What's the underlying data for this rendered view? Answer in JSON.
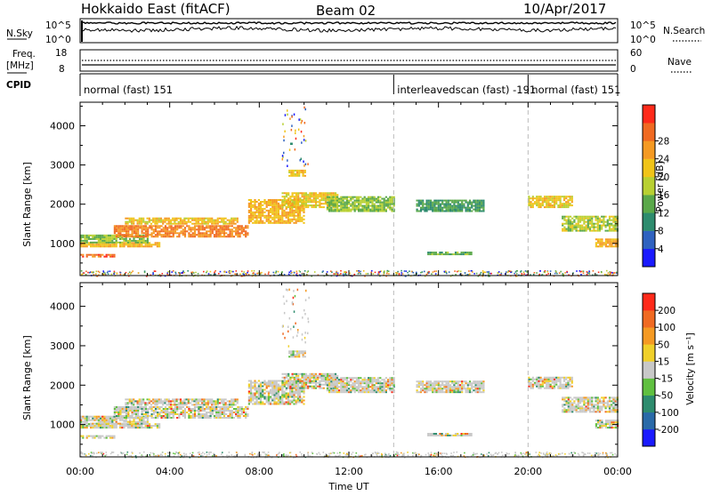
{
  "header": {
    "title": "Hokkaido East (fitACF)",
    "beam": "Beam 02",
    "date": "10/Apr/2017"
  },
  "top_panels": {
    "nsky_label": "N.Sky",
    "nsky_ticks": [
      "10^5",
      "10^0"
    ],
    "nsearch_label": "N.Search",
    "nsearch_ticks": [
      "10^5",
      "10^0"
    ],
    "freq_label_1": "Freq.",
    "freq_label_2": "[MHz]",
    "freq_ticks": [
      "18",
      "8"
    ],
    "nave_label": "Nave",
    "nave_ticks": [
      "60",
      "0"
    ],
    "cpid_label": "CPID",
    "cpid_segments": [
      {
        "label": "normal (fast) 151",
        "start_h": 0
      },
      {
        "label": "interleavedscan (fast) -191",
        "start_h": 14
      },
      {
        "label": "normal (fast) 151",
        "start_h": 20
      }
    ]
  },
  "axes": {
    "ylabel": "Slant Range [km]",
    "xlabel": "Time UT",
    "x_ticks": [
      "00:00",
      "04:00",
      "08:00",
      "12:00",
      "16:00",
      "20:00",
      "00:00"
    ],
    "y_ticks": [
      "1000",
      "2000",
      "3000",
      "4000"
    ]
  },
  "colorbars": {
    "power": {
      "label": "Power [dB]",
      "ticks": [
        "4",
        "8",
        "12",
        "16",
        "20",
        "24",
        "28"
      ],
      "colors": [
        "#1a1aff",
        "#2f62c0",
        "#2e8c6e",
        "#5aa84a",
        "#b8d032",
        "#f0c419",
        "#f59a23",
        "#f06a22",
        "#ff2a1a"
      ]
    },
    "velocity": {
      "label": "Velocity [m s⁻¹]",
      "ticks": [
        "200",
        "100",
        "50",
        "15",
        "-15",
        "-50",
        "-100",
        "-200"
      ],
      "colors": [
        "#1a1aff",
        "#2a6aa8",
        "#2e8c6e",
        "#60c040",
        "#c8c8c8",
        "#f0d02a",
        "#f59a23",
        "#f06a22",
        "#ff2a1a"
      ]
    }
  },
  "chart_data": {
    "type": "heatmap",
    "title": "Hokkaido East (fitACF)",
    "x_range_hours": [
      0,
      24
    ],
    "y_range_km": [
      180,
      4600
    ],
    "backscatter_bands_power": [
      {
        "t0": 0.0,
        "t1": 3.5,
        "r0": 900,
        "r1": 1000,
        "db": 22
      },
      {
        "t0": 0.0,
        "t1": 1.5,
        "r0": 640,
        "r1": 720,
        "db": 28
      },
      {
        "t0": 0.0,
        "t1": 3.0,
        "r0": 1000,
        "r1": 1200,
        "db": 14
      },
      {
        "t0": 1.5,
        "t1": 7.5,
        "r0": 1150,
        "r1": 1450,
        "db": 26
      },
      {
        "t0": 2.0,
        "t1": 7.0,
        "r0": 1480,
        "r1": 1620,
        "db": 20
      },
      {
        "t0": 7.5,
        "t1": 10.0,
        "r0": 1500,
        "r1": 2100,
        "db": 22
      },
      {
        "t0": 9.0,
        "t1": 11.5,
        "r0": 1900,
        "r1": 2300,
        "db": 20
      },
      {
        "t0": 9.3,
        "t1": 10.0,
        "r0": 2700,
        "r1": 2850,
        "db": 20
      },
      {
        "t0": 11.0,
        "t1": 14.0,
        "r0": 1800,
        "r1": 2200,
        "db": 14
      },
      {
        "t0": 15.0,
        "t1": 18.0,
        "r0": 1800,
        "r1": 2100,
        "db": 10
      },
      {
        "t0": 15.5,
        "t1": 17.5,
        "r0": 700,
        "r1": 780,
        "db": 12
      },
      {
        "t0": 20.0,
        "t1": 22.0,
        "r0": 1900,
        "r1": 2200,
        "db": 20
      },
      {
        "t0": 21.5,
        "t1": 24.0,
        "r0": 1300,
        "r1": 1700,
        "db": 16
      },
      {
        "t0": 23.0,
        "t1": 24.0,
        "r0": 900,
        "r1": 1100,
        "db": 22
      }
    ]
  }
}
